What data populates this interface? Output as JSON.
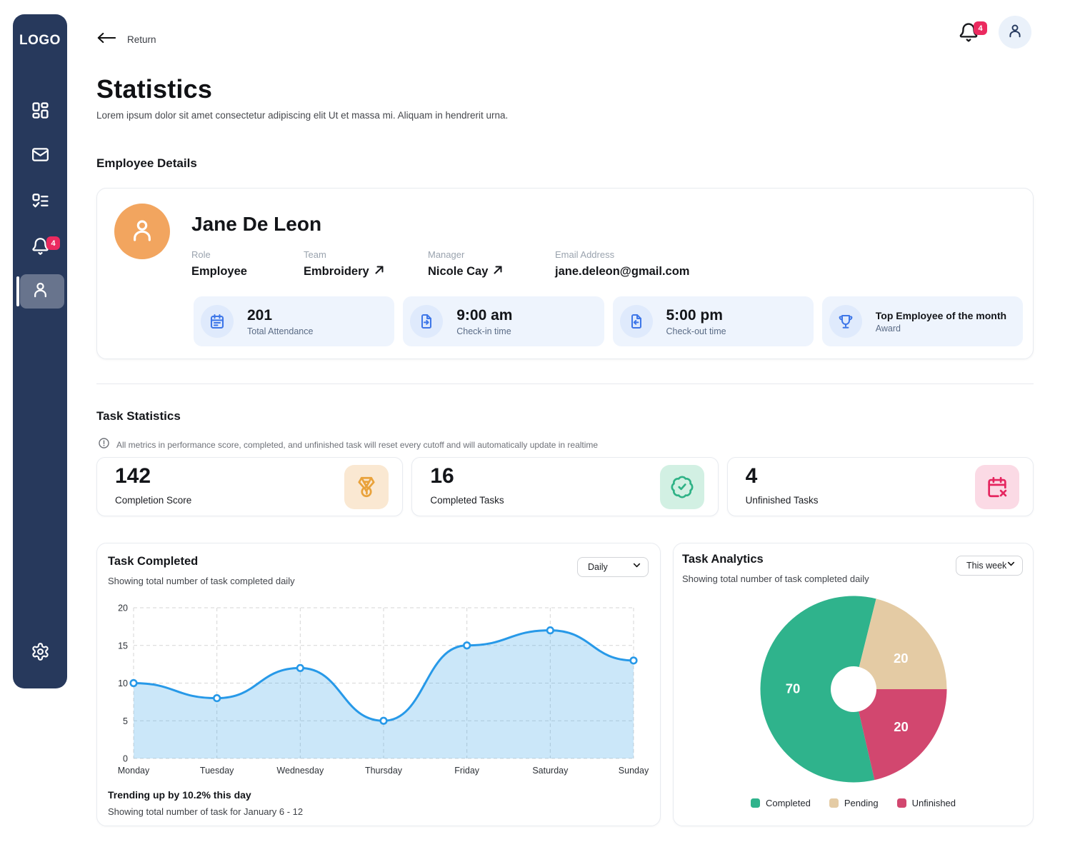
{
  "sidebar": {
    "logo": "LOGO",
    "items": [
      {
        "id": "dashboard",
        "icon": "layout-dashboard-icon"
      },
      {
        "id": "mail",
        "icon": "mail-icon"
      },
      {
        "id": "tasks",
        "icon": "task-list-icon"
      },
      {
        "id": "notifications",
        "icon": "bell-icon",
        "badge": "4"
      },
      {
        "id": "profile",
        "icon": "user-icon",
        "active": true
      },
      {
        "id": "settings",
        "icon": "gear-icon"
      }
    ],
    "notification_badge": "4"
  },
  "header": {
    "return_label": "Return",
    "notification_badge": "4"
  },
  "page": {
    "title": "Statistics",
    "subtitle": "Lorem ipsum dolor sit amet consectetur adipiscing elit Ut et massa mi. Aliquam in hendrerit urna."
  },
  "employee": {
    "heading": "Employee Details",
    "name": "Jane De Leon",
    "fields": [
      {
        "label": "Role",
        "value": "Employee"
      },
      {
        "label": "Team",
        "value": "Embroidery",
        "link": true
      },
      {
        "label": "Manager",
        "value": "Nicole Cay",
        "link": true
      },
      {
        "label": "Email Address",
        "value": "jane.deleon@gmail.com"
      }
    ],
    "tiles": [
      {
        "value": "201",
        "label": "Total Attendance",
        "icon": "calendar-icon"
      },
      {
        "value": "9:00 am",
        "label": "Check-in time",
        "icon": "file-arrow-in-icon"
      },
      {
        "value": "5:00 pm",
        "label": "Check-out time",
        "icon": "file-arrow-out-icon"
      },
      {
        "title": "Top Employee of the month",
        "label": "Award",
        "icon": "trophy-icon"
      }
    ]
  },
  "task_stats": {
    "heading": "Task Statistics",
    "info_note": "All metrics in performance score, completed, and unfinished task will reset every cutoff and will automatically update in realtime",
    "cards": [
      {
        "value": "142",
        "label": "Completion Score",
        "icon": "medal-icon",
        "icon_color": "#e9a23b",
        "icon_bg": "#fae8d2"
      },
      {
        "value": "16",
        "label": "Completed Tasks",
        "icon": "badge-check-icon",
        "icon_color": "#2fb286",
        "icon_bg": "#d2f0e3"
      },
      {
        "value": "4",
        "label": "Unfinished Tasks",
        "icon": "calendar-x-icon",
        "icon_color": "#e5255f",
        "icon_bg": "#fbdae5"
      }
    ]
  },
  "task_completed_card": {
    "title": "Task Completed",
    "subtitle": "Showing total number of task completed daily",
    "dropdown_value": "Daily",
    "trend_title": "Trending up by 10.2% this day",
    "trend_sub": "Showing total number of task for January 6 - 12"
  },
  "task_analytics_card": {
    "title": "Task Analytics",
    "subtitle": "Showing total number of task completed daily",
    "dropdown_value": "This week"
  },
  "chart_data": [
    {
      "type": "area",
      "title": "Task Completed",
      "x": [
        "Monday",
        "Tuesday",
        "Wednesday",
        "Thursday",
        "Friday",
        "Saturday",
        "Sunday"
      ],
      "values": [
        10,
        8,
        12,
        5,
        15,
        17,
        13
      ],
      "ylim": [
        0,
        20
      ],
      "yticks": [
        20,
        15,
        10,
        5,
        0
      ],
      "grid": "dashed",
      "line_color": "#2799e8",
      "area_opacity": 0.24,
      "grid_color": "#d6d6d6",
      "axis_text_color": "#2e3238"
    },
    {
      "type": "pie",
      "title": "Task Analytics",
      "donut_hole_r": 32,
      "outer_r": 130.5,
      "legend_position": "bottom",
      "label_color": "#ffffff",
      "series": [
        {
          "name": "Completed",
          "value": 70,
          "color": "#2fb38c",
          "start_deg": 167,
          "sweep_deg": 207,
          "label_r": 85
        },
        {
          "name": "Pending",
          "value": 20,
          "color": "#e4cba4",
          "start_deg": 14,
          "sweep_deg": 76,
          "label_r": 79,
          "label_deg": 57
        },
        {
          "name": "Unfinished",
          "value": 20,
          "color": "#d2476f",
          "start_deg": 90,
          "sweep_deg": 77,
          "label_r": 85
        }
      ]
    }
  ]
}
